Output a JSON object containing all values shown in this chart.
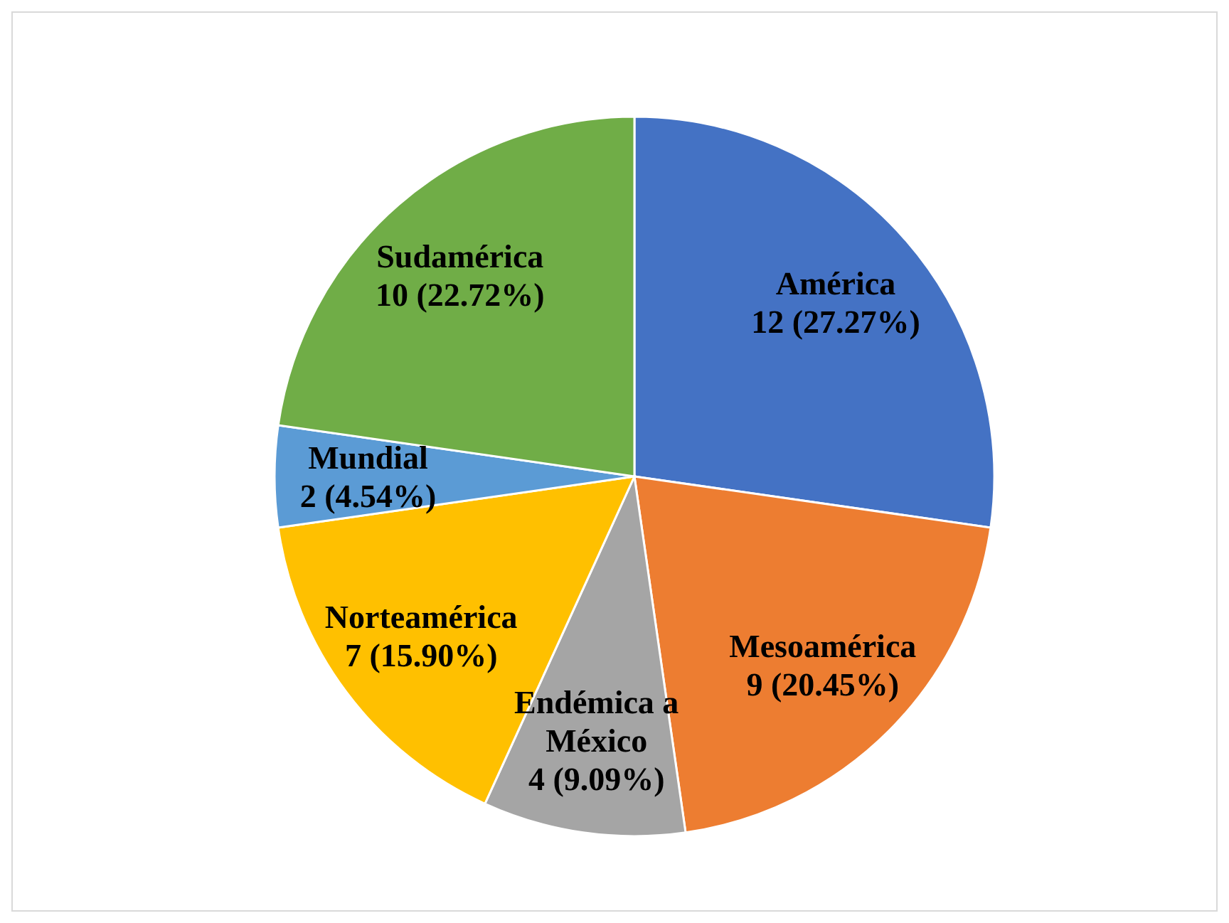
{
  "chart_data": {
    "type": "pie",
    "categories": [
      "América",
      "Mesoamérica",
      "Endémica a México",
      "Norteamérica",
      "Mundial",
      "Sudamérica"
    ],
    "values": [
      12,
      9,
      4,
      7,
      2,
      10
    ],
    "colors": [
      "#4472c4",
      "#ed7d31",
      "#a5a5a5",
      "#ffc000",
      "#5b9bd5",
      "#70ad47"
    ],
    "value_labels": [
      "12 (27.27%)",
      "9 (20.45%)",
      "4 (9.09%)",
      "7 (15.90%)",
      "2 (4.54%)",
      "10 (22.72%)"
    ],
    "legend": false
  }
}
